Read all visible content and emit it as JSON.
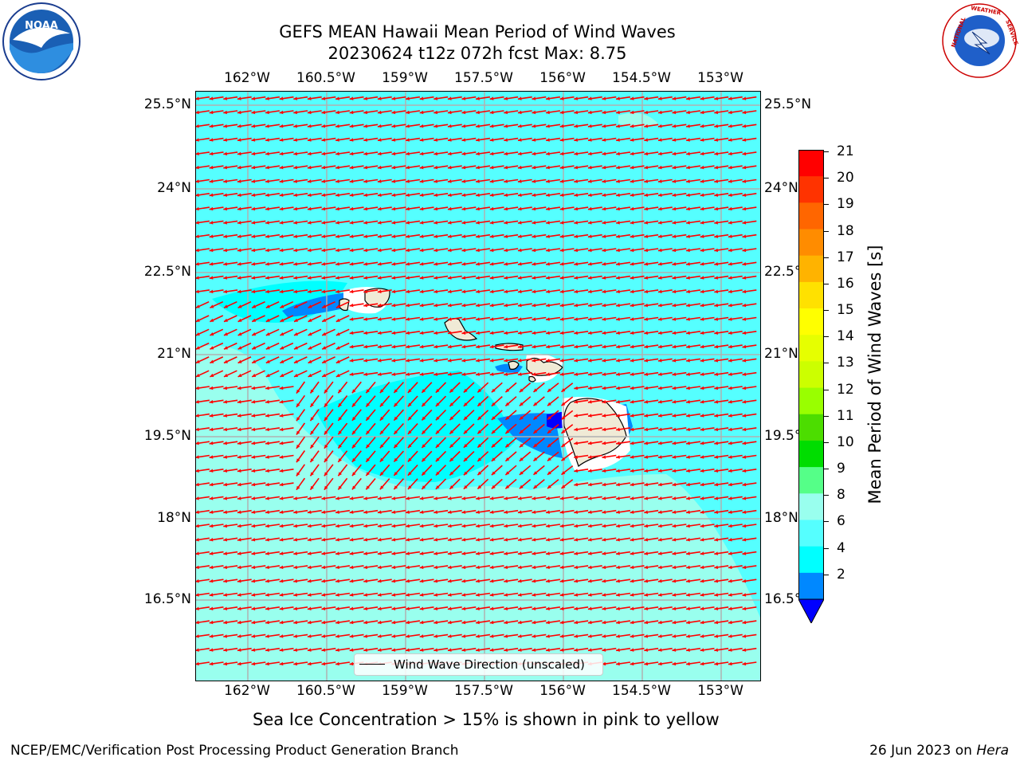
{
  "title": {
    "line1": "GEFS MEAN Hawaii Mean Period of Wind Waves",
    "line2": "20230624 t12z 072h fcst   Max: 8.75"
  },
  "map": {
    "lon_ticks": [
      "162°W",
      "160.5°W",
      "159°W",
      "157.5°W",
      "156°W",
      "154.5°W",
      "153°W"
    ],
    "lat_ticks": [
      "25.5°N",
      "24°N",
      "22.5°N",
      "21°N",
      "19.5°N",
      "18°N",
      "16.5°N"
    ],
    "legend_label": "Wind Wave Direction (unscaled)",
    "arrow_color": "#ff0000",
    "land_color": "#f0ead6"
  },
  "colorbar": {
    "label": "Mean Period of Wind Waves [s]",
    "ticks": [
      "21",
      "20",
      "19",
      "18",
      "17",
      "16",
      "15",
      "14",
      "13",
      "12",
      "11",
      "10",
      "9",
      "8",
      "6",
      "4",
      "2"
    ],
    "colors": [
      "#ff0000",
      "#ff3300",
      "#ff6600",
      "#ff8c00",
      "#ffb300",
      "#ffe100",
      "#ffff00",
      "#e6ff00",
      "#ccff00",
      "#99ff00",
      "#4cdd00",
      "#00dd00",
      "#55ff88",
      "#99ffee",
      "#55ffff",
      "#00ffff",
      "#0088ff"
    ],
    "extend_color": "#0000ff"
  },
  "notes": {
    "sea_ice": "Sea Ice Concentration > 15% is shown in pink to yellow"
  },
  "footer": {
    "left": "NCEP/EMC/Verification Post Processing Product Generation Branch",
    "date": "26 Jun 2023 on",
    "machine": "Hera"
  },
  "logos": {
    "left": "NOAA",
    "right_text": "NATIONAL WEATHER SERVICE"
  }
}
